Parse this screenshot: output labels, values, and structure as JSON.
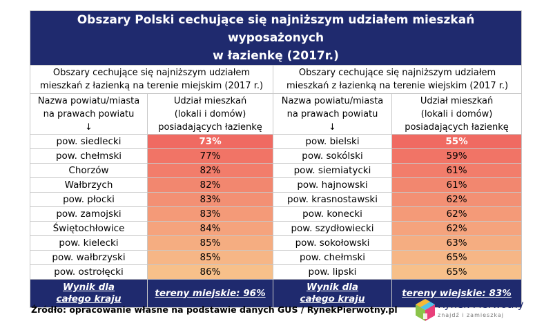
{
  "title": {
    "line1": "Obszary Polski cechujące się najniższym udziałem mieszkań wyposażonych",
    "line2": "w łazienkę (2017r.)"
  },
  "sections": {
    "urban": {
      "line1": "Obszary cechujące się najniższym udziałem",
      "line2": "mieszkań z łazienką na terenie miejskim (2017 r.)"
    },
    "rural": {
      "line1": "Obszary cechujące się najniższym udziałem",
      "line2": "mieszkań z łazienką na terenie wiejskim (2017 r.)"
    }
  },
  "column_headers": {
    "name": {
      "line1": "Nazwa powiatu/miasta",
      "line2": "na prawach powiatu",
      "line3": "↓"
    },
    "share": {
      "line1": "Udział mieszkań",
      "line2": "(lokali i domów)",
      "line3": "posiadających łazienkę"
    }
  },
  "rows": [
    {
      "urban_name": "pow. siedlecki",
      "urban_value": "73%",
      "rural_name": "pow. bielski",
      "rural_value": "55%"
    },
    {
      "urban_name": "pow. chełmski",
      "urban_value": "77%",
      "rural_name": "pow. sokólski",
      "rural_value": "59%"
    },
    {
      "urban_name": "Chorzów",
      "urban_value": "82%",
      "rural_name": "pow. siemiatycki",
      "rural_value": "61%"
    },
    {
      "urban_name": "Wałbrzych",
      "urban_value": "82%",
      "rural_name": "pow. hajnowski",
      "rural_value": "61%"
    },
    {
      "urban_name": "pow. płocki",
      "urban_value": "83%",
      "rural_name": "pow. krasnostawski",
      "rural_value": "62%"
    },
    {
      "urban_name": "pow. zamojski",
      "urban_value": "83%",
      "rural_name": "pow. konecki",
      "rural_value": "62%"
    },
    {
      "urban_name": "Świętochłowice",
      "urban_value": "84%",
      "rural_name": "pow. szydłowiecki",
      "rural_value": "62%"
    },
    {
      "urban_name": "pow. kielecki",
      "urban_value": "85%",
      "rural_name": "pow. sokołowski",
      "rural_value": "63%"
    },
    {
      "urban_name": "pow. wałbrzyski",
      "urban_value": "85%",
      "rural_name": "pow. chełmski",
      "rural_value": "65%"
    },
    {
      "urban_name": "pow. ostrołęcki",
      "urban_value": "86%",
      "rural_name": "pow. lipski",
      "rural_value": "65%"
    }
  ],
  "footer": {
    "urban_label": {
      "line1": "Wynik dla",
      "line2": "całego kraju"
    },
    "urban_value": "tereny miejskie: 96%",
    "rural_label": {
      "line1": "Wynik dla",
      "line2": "całego kraju"
    },
    "rural_value": "tereny wiejskie: 83%"
  },
  "source": "Źródło: opracowanie własne na podstawie danych GUS / RynekPierwotny.pl",
  "logo": {
    "name": "Rynek Pierwotny",
    "tagline": "znajdź i zamieszkaj",
    "icon": "house-cube-logo-icon"
  },
  "colors": {
    "header_bg": "#1f2a6e",
    "header_text": "#ffffff",
    "cell_gradient_top": "#f06a62",
    "cell_gradient_bottom": "#f7c08a",
    "border": "#c8c8c8"
  }
}
